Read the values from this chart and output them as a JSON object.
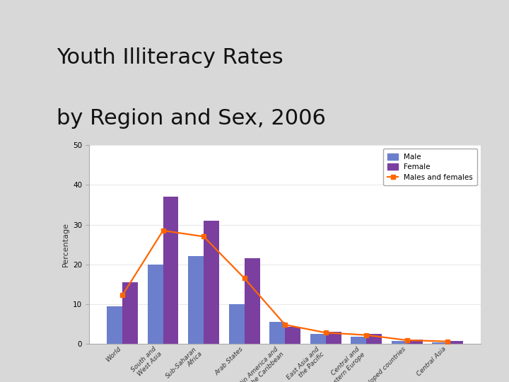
{
  "title_line1": "Youth Illiteracy Rates",
  "title_line2": "by Region and Sex, 2006",
  "categories": [
    "World",
    "South and\nWest Asia",
    "Sub-Saharan\nAfrica",
    "Arab States",
    "Latin America and\nthe Caribbean",
    "East Asia and\nthe Pacific",
    "Central and\nEastern Europe",
    "Developed countries",
    "Central Asia"
  ],
  "male": [
    9.5,
    20.0,
    22.0,
    10.0,
    5.5,
    2.5,
    1.7,
    0.7,
    0.4
  ],
  "female": [
    15.5,
    37.0,
    31.0,
    21.5,
    4.2,
    3.0,
    2.5,
    1.0,
    0.8
  ],
  "combined": [
    12.2,
    28.5,
    27.0,
    16.5,
    4.8,
    2.8,
    2.2,
    0.9,
    0.6
  ],
  "male_color": "#6B7FCC",
  "female_color": "#7B3FA0",
  "combined_color": "#FF6600",
  "ylabel": "Percentage",
  "ylim": [
    0,
    50
  ],
  "yticks": [
    0,
    10,
    20,
    30,
    40,
    50
  ],
  "background_color": "#D8D8D8",
  "plot_bg_color": "#FFFFFF",
  "sidebar_color": "#4A7FA0",
  "title_fontsize": 22,
  "bar_width": 0.38
}
